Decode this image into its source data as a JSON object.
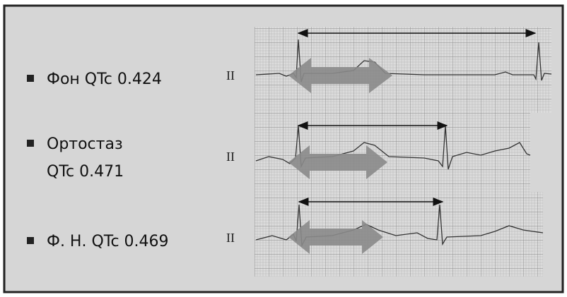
{
  "items": [
    {
      "lines": [
        "Фон QTc 0.424"
      ],
      "lead": "II"
    },
    {
      "lines": [
        "Ортостаз",
        "QTc 0.471"
      ],
      "lead": "II"
    },
    {
      "lines": [
        "Ф. Н. QTc 0.469"
      ],
      "lead": "II"
    }
  ]
}
